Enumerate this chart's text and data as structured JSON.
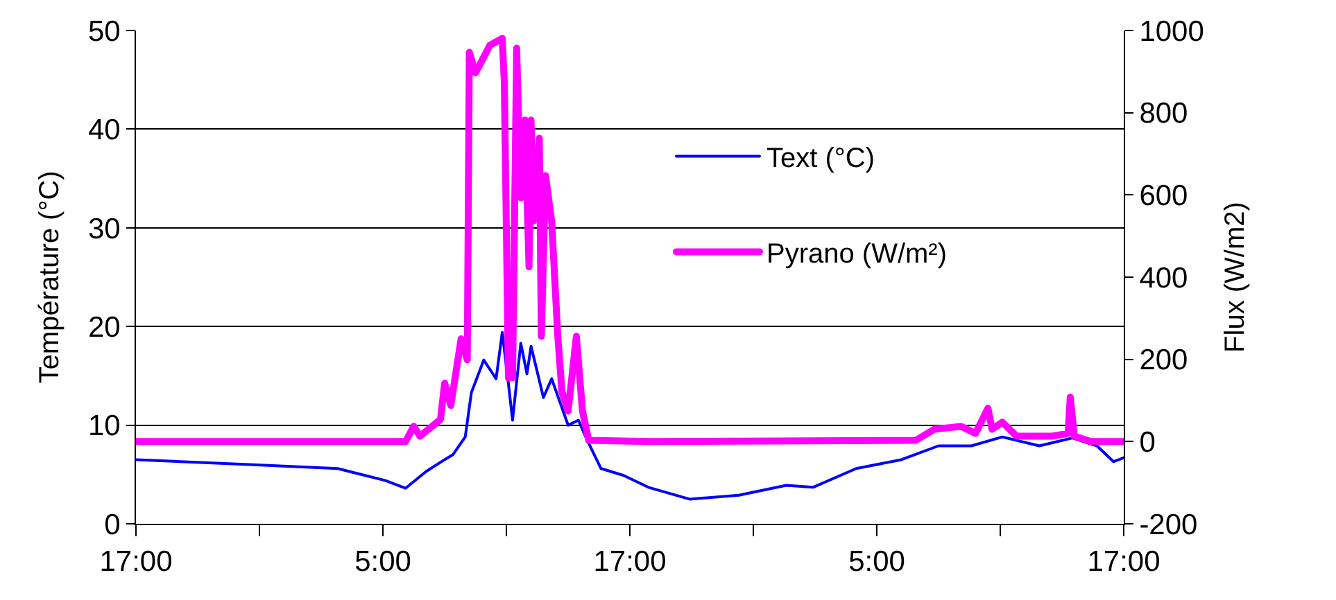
{
  "chart_data": {
    "type": "line",
    "ylabel": "Température (°C)",
    "y2label": "Flux (W/m2)",
    "xlim": [
      "2000-01-01T17:00",
      "2000-01-03T17:00"
    ],
    "xticks": [
      {
        "value": "2000-01-01T17:00",
        "label": "17:00"
      },
      {
        "value": "2000-01-01T23:00",
        "label": null
      },
      {
        "value": "2000-01-02T05:00",
        "label": "5:00"
      },
      {
        "value": "2000-01-02T11:00",
        "label": null
      },
      {
        "value": "2000-01-02T17:00",
        "label": "17:00"
      },
      {
        "value": "2000-01-02T23:00",
        "label": null
      },
      {
        "value": "2000-01-03T05:00",
        "label": "5:00"
      },
      {
        "value": "2000-01-03T11:00",
        "label": null
      },
      {
        "value": "2000-01-03T17:00",
        "label": "17:00"
      }
    ],
    "ylim": [
      0,
      50
    ],
    "yticks": [
      0,
      10,
      20,
      30,
      40,
      50
    ],
    "y2lim": [
      -200,
      1000
    ],
    "y2ticks": [
      -200,
      0,
      200,
      400,
      600,
      800,
      1000
    ],
    "grid": "y",
    "legend": "right",
    "line_style": "solid",
    "marker": "none",
    "series": [
      {
        "name": "Text (°C)",
        "color": "#0000ff",
        "x": [
          "2000-01-01T17:00",
          "2000-01-01T22:30",
          "2000-01-02T02:48",
          "2000-01-02T05:06",
          "2000-01-02T06:06",
          "2000-01-02T07:06",
          "2000-01-02T08:00",
          "2000-01-02T08:24",
          "2000-01-02T09:00",
          "2000-01-02T09:18",
          "2000-01-02T09:54",
          "2000-01-02T10:30",
          "2000-01-02T10:48",
          "2000-01-02T11:06",
          "2000-01-02T11:18",
          "2000-01-02T11:42",
          "2000-01-02T12:00",
          "2000-01-02T12:12",
          "2000-01-02T12:48",
          "2000-01-02T13:12",
          "2000-01-02T14:00",
          "2000-01-02T14:30",
          "2000-01-02T14:54",
          "2000-01-02T15:36",
          "2000-01-02T16:42",
          "2000-01-02T17:54",
          "2000-01-02T19:54",
          "2000-01-02T22:18",
          "2000-01-03T00:36",
          "2000-01-03T01:54",
          "2000-01-03T04:00",
          "2000-01-03T06:12",
          "2000-01-03T08:00",
          "2000-01-03T09:36",
          "2000-01-03T11:06",
          "2000-01-03T12:54",
          "2000-01-03T14:30",
          "2000-01-03T15:42",
          "2000-01-03T16:30",
          "2000-01-03T17:00"
        ],
        "values": [
          6.5,
          6.0,
          5.6,
          4.4,
          3.6,
          5.3,
          6.5,
          7.0,
          8.8,
          13.3,
          16.6,
          14.7,
          19.4,
          14.2,
          10.5,
          18.3,
          15.2,
          18.0,
          12.8,
          14.7,
          10.0,
          10.5,
          8.6,
          5.6,
          4.9,
          3.7,
          2.5,
          2.9,
          3.9,
          3.7,
          5.6,
          6.5,
          7.9,
          7.9,
          8.8,
          7.9,
          8.7,
          7.9,
          6.3,
          6.7
        ]
      },
      {
        "name": "Pyrano (W/m²)",
        "color": "#ff00ff",
        "axis": "y2",
        "x": [
          "2000-01-01T17:00",
          "2000-01-02T06:06",
          "2000-01-02T06:30",
          "2000-01-02T06:48",
          "2000-01-02T07:48",
          "2000-01-02T08:00",
          "2000-01-02T08:18",
          "2000-01-02T08:48",
          "2000-01-02T09:06",
          "2000-01-02T09:12",
          "2000-01-02T09:30",
          "2000-01-02T10:12",
          "2000-01-02T10:48",
          "2000-01-02T10:54",
          "2000-01-02T11:06",
          "2000-01-02T11:18",
          "2000-01-02T11:30",
          "2000-01-02T11:42",
          "2000-01-02T11:54",
          "2000-01-02T12:06",
          "2000-01-02T12:12",
          "2000-01-02T12:18",
          "2000-01-02T12:36",
          "2000-01-02T12:42",
          "2000-01-02T12:54",
          "2000-01-02T13:12",
          "2000-01-02T13:30",
          "2000-01-02T13:42",
          "2000-01-02T14:00",
          "2000-01-02T14:24",
          "2000-01-02T14:42",
          "2000-01-02T15:00",
          "2000-01-02T17:54",
          "2000-01-03T06:54",
          "2000-01-03T07:48",
          "2000-01-03T09:06",
          "2000-01-03T09:48",
          "2000-01-03T10:24",
          "2000-01-03T10:36",
          "2000-01-03T11:06",
          "2000-01-03T11:48",
          "2000-01-03T13:30",
          "2000-01-03T14:18",
          "2000-01-03T14:24",
          "2000-01-03T14:36",
          "2000-01-03T15:24",
          "2000-01-03T17:00"
        ],
        "values": [
          0,
          0,
          37,
          13,
          54,
          142,
          88,
          250,
          199,
          947,
          897,
          964,
          981,
          873,
          155,
          155,
          957,
          593,
          782,
          425,
          782,
          536,
          738,
          256,
          647,
          536,
          256,
          121,
          74,
          256,
          74,
          3,
          0,
          3,
          30,
          37,
          20,
          81,
          30,
          47,
          13,
          13,
          20,
          108,
          13,
          0,
          0
        ]
      }
    ]
  }
}
